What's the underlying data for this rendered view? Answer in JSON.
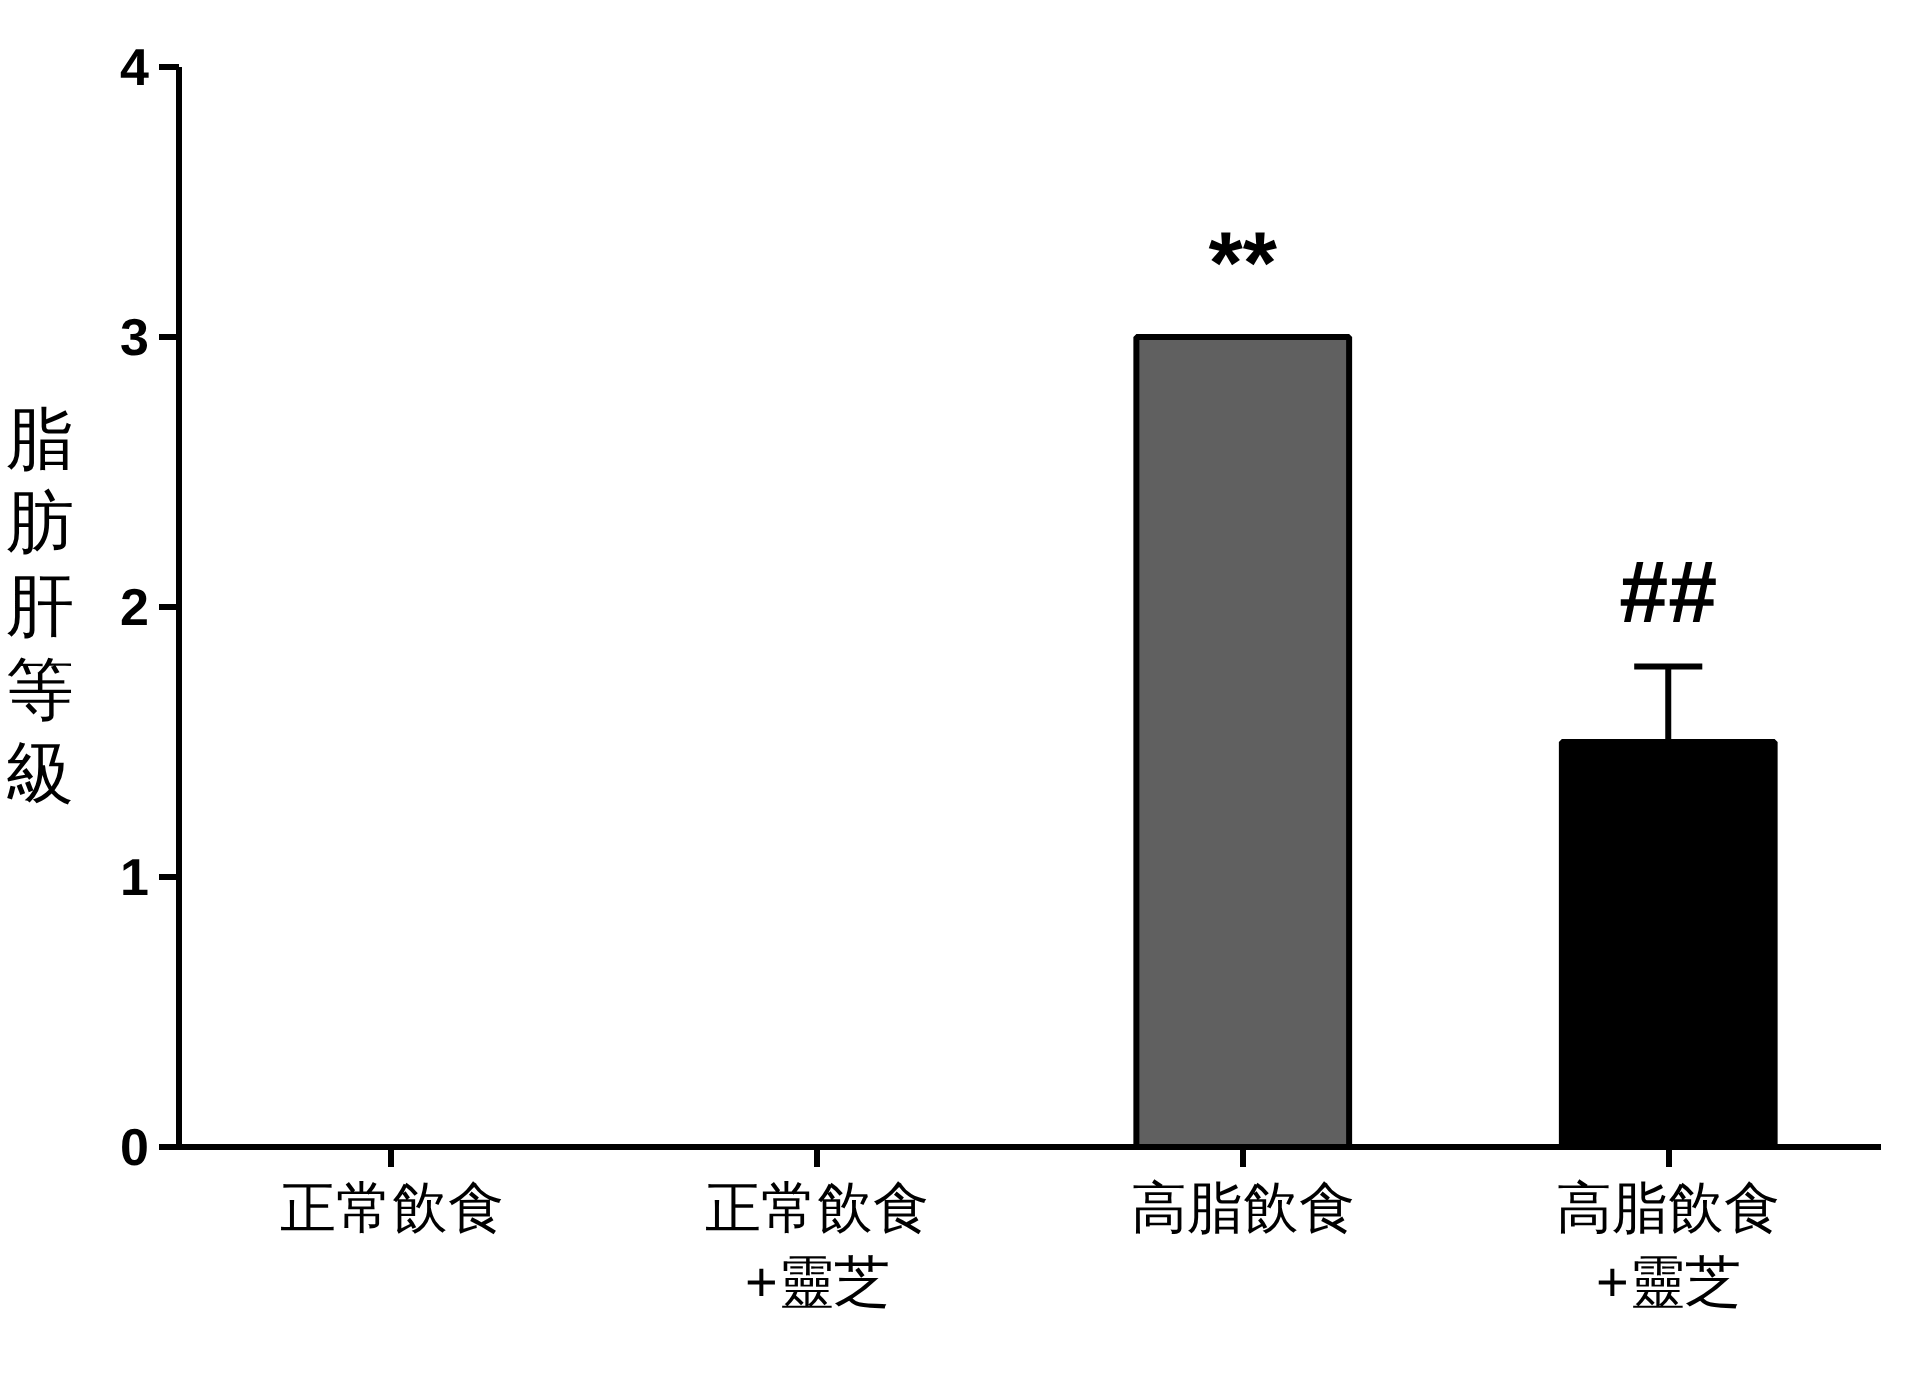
{
  "chart_data": {
    "type": "bar",
    "ylabel": "脂肪肝等級",
    "categories": [
      "正常飲食",
      "正常飲食\n+靈芝",
      "高脂飲食",
      "高脂飲食\n+靈芝"
    ],
    "values": [
      0,
      0,
      3,
      1.5
    ],
    "colors": [
      "#000000",
      "#000000",
      "#606060",
      "#000000"
    ],
    "errors": [
      null,
      null,
      null,
      [
        1.5,
        1.78
      ]
    ],
    "ylim": [
      0,
      4
    ],
    "yticks": [
      0,
      1,
      2,
      3,
      4
    ],
    "grid": false,
    "annotations": [
      "**",
      "##"
    ]
  }
}
